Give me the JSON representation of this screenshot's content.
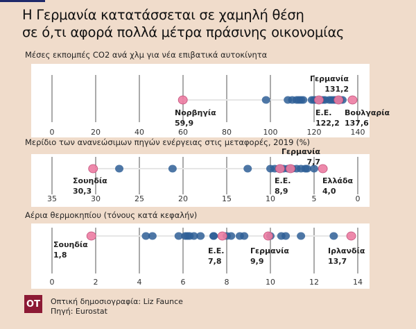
{
  "title_lines": [
    "Η Γερμανία κατατάσσεται σε χαμηλή θέση",
    "σε ό,τι αφορά πολλά μέτρα πράσινης οικονομίας"
  ],
  "colors": {
    "background": "#f0dccb",
    "other_countries": "#2f5f97",
    "highlight": "#ec7ca2",
    "logo": "#8c1a35"
  },
  "chart_data": [
    {
      "type": "scatter",
      "title": "Μέσες εκπομπές CO2 ανά χλμ για νέα επιβατικά αυτοκίνητα",
      "xlim": [
        0,
        140
      ],
      "ticks": [
        "0",
        "20",
        "40",
        "60",
        "80",
        "100",
        "120",
        "140"
      ],
      "reversed": false,
      "others": [
        98,
        108,
        110,
        112,
        113,
        114,
        115,
        119,
        120,
        121,
        123,
        124,
        125,
        127,
        128,
        129,
        130,
        132,
        133
      ],
      "highlights": [
        {
          "name": "Νορβηγία",
          "value": 59.9,
          "label": "59,9"
        },
        {
          "name": "Ε.Ε.",
          "value": 122.2,
          "label": "122,2"
        },
        {
          "name": "Γερμανία",
          "value": 131.2,
          "label": "131,2"
        },
        {
          "name": "Βουλγαρία",
          "value": 137.6,
          "label": "137,6"
        }
      ]
    },
    {
      "type": "scatter",
      "title": "Μερίδιο των ανανεώσιμων πηγών ενέργειας στις μεταφορές, 2019 (%)",
      "xlim": [
        35,
        0
      ],
      "ticks": [
        "35",
        "30",
        "25",
        "20",
        "15",
        "10",
        "5",
        "0"
      ],
      "reversed": true,
      "others": [
        27.3,
        21.2,
        12.6,
        10,
        9.5,
        9,
        8.5,
        8,
        7.5,
        7,
        6.5,
        6,
        5.8,
        5
      ],
      "highlights": [
        {
          "name": "Σουηδία",
          "value": 30.3,
          "label": "30,3"
        },
        {
          "name": "Ε.Ε.",
          "value": 8.9,
          "label": "8,9"
        },
        {
          "name": "Γερμανία",
          "value": 7.7,
          "label": "7,7"
        },
        {
          "name": "Ελλάδα",
          "value": 4.0,
          "label": "4,0"
        }
      ]
    },
    {
      "type": "scatter",
      "title": "Αέρια θερμοκηπίου (τόνους κατά κεφαλήν)",
      "xlim": [
        0,
        14
      ],
      "ticks": [
        "0",
        "2",
        "4",
        "6",
        "8",
        "10",
        "12",
        "14"
      ],
      "reversed": false,
      "others": [
        4.3,
        4.6,
        5.8,
        6.1,
        6.2,
        6.3,
        6.5,
        6.8,
        7.4,
        7.4,
        8.0,
        8.2,
        8.6,
        8.8,
        10.0,
        10.5,
        10.7,
        11.4,
        12.9
      ],
      "highlights": [
        {
          "name": "Σουηδία",
          "value": 1.8,
          "label": "1,8"
        },
        {
          "name": "Ε.Ε.",
          "value": 7.8,
          "label": "7,8"
        },
        {
          "name": "Γερμανία",
          "value": 9.9,
          "label": "9,9"
        },
        {
          "name": "Ιρλανδία",
          "value": 13.7,
          "label": "13,7"
        }
      ]
    }
  ],
  "footer": {
    "logo_text": "ΟΤ",
    "credit": "Οπτική δημοσιογραφία: Liz Faunce",
    "source": "Πηγή: Eurostat"
  }
}
